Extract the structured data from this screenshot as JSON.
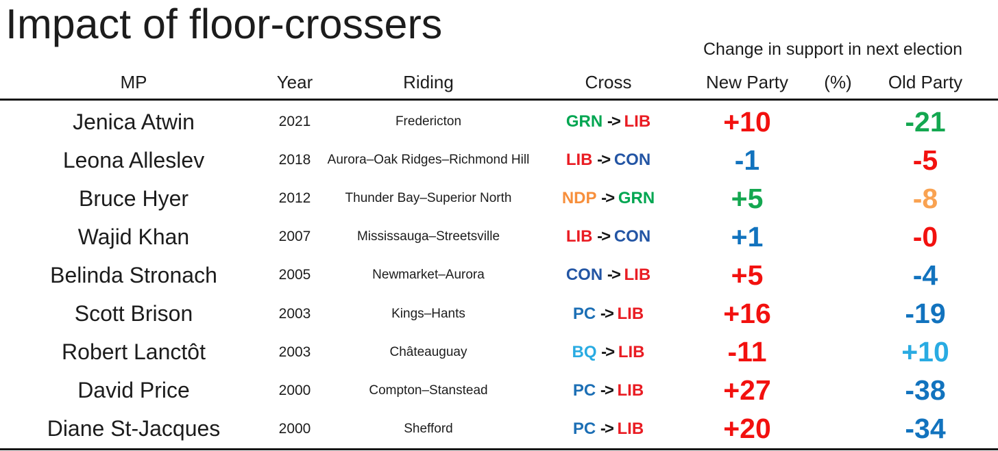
{
  "title": "Impact of floor-crossers",
  "header": {
    "span_label": "Change in support in next election",
    "columns": [
      "MP",
      "Year",
      "Riding",
      "Cross",
      "New Party",
      "(%)",
      "Old Party"
    ]
  },
  "cross_arrow": "->",
  "party_colors": {
    "GRN": {
      "label": "#00A651",
      "value": "#14A750"
    },
    "LIB": {
      "label": "#E91C23",
      "value": "#F2110F"
    },
    "CON": {
      "label": "#2355A4",
      "value": "#1273BE"
    },
    "NDP": {
      "label": "#F78F3C",
      "value": "#F9A251"
    },
    "PC": {
      "label": "#1C6FB5",
      "value": "#1273BE"
    },
    "BQ": {
      "label": "#29ABE2",
      "value": "#29ABE2"
    }
  },
  "chart_data": {
    "type": "table",
    "title": "Impact of floor-crossers",
    "group_header": "Change in support in next election (%)",
    "columns": [
      "MP",
      "Year",
      "Riding",
      "Cross",
      "New Party",
      "(%)",
      "Old Party"
    ],
    "rows": [
      {
        "mp": "Jenica Atwin",
        "year": "2021",
        "riding": "Fredericton",
        "from": "GRN",
        "to": "LIB",
        "new_value": "+10",
        "old_value": "-21"
      },
      {
        "mp": "Leona Alleslev",
        "year": "2018",
        "riding": "Aurora–Oak Ridges–Richmond Hill",
        "from": "LIB",
        "to": "CON",
        "new_value": "-1",
        "old_value": "-5"
      },
      {
        "mp": "Bruce Hyer",
        "year": "2012",
        "riding": "Thunder Bay–Superior North",
        "from": "NDP",
        "to": "GRN",
        "new_value": "+5",
        "old_value": "-8"
      },
      {
        "mp": "Wajid Khan",
        "year": "2007",
        "riding": "Mississauga–Streetsville",
        "from": "LIB",
        "to": "CON",
        "new_value": "+1",
        "old_value": "-0"
      },
      {
        "mp": "Belinda Stronach",
        "year": "2005",
        "riding": "Newmarket–Aurora",
        "from": "CON",
        "to": "LIB",
        "new_value": "+5",
        "old_value": "-4"
      },
      {
        "mp": "Scott Brison",
        "year": "2003",
        "riding": "Kings–Hants",
        "from": "PC",
        "to": "LIB",
        "new_value": "+16",
        "old_value": "-19"
      },
      {
        "mp": "Robert Lanctôt",
        "year": "2003",
        "riding": "Châteauguay",
        "from": "BQ",
        "to": "LIB",
        "new_value": "-11",
        "old_value": "+10"
      },
      {
        "mp": "David Price",
        "year": "2000",
        "riding": "Compton–Stanstead",
        "from": "PC",
        "to": "LIB",
        "new_value": "+27",
        "old_value": "-38"
      },
      {
        "mp": "Diane St-Jacques",
        "year": "2000",
        "riding": "Shefford",
        "from": "PC",
        "to": "LIB",
        "new_value": "+20",
        "old_value": "-34"
      }
    ]
  }
}
